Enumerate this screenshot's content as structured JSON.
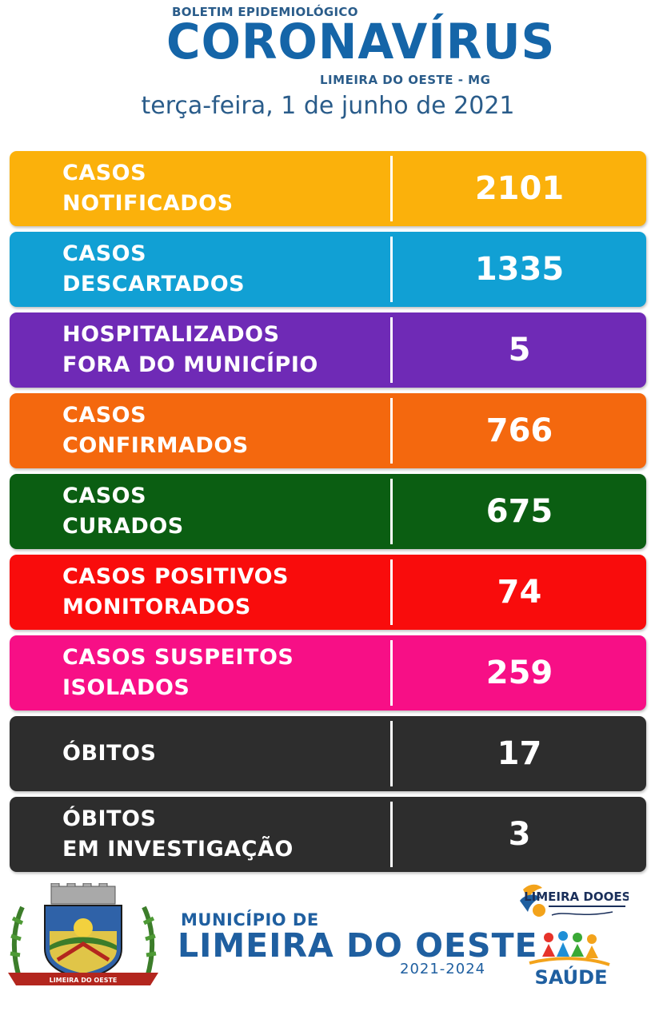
{
  "header": {
    "kicker": "BOLETIM EPIDEMIOLÓGICO",
    "title": "CORONAVÍRUS",
    "location": "LIMEIRA DO OESTE - MG",
    "date": "terça-feira, 1 de junho de 2021"
  },
  "stats": [
    {
      "label": "CASOS\nNOTIFICADOS",
      "value": "2101",
      "color": "#fbb10b"
    },
    {
      "label": "CASOS\nDESCARTADOS",
      "value": "1335",
      "color": "#11a0d4"
    },
    {
      "label": "HOSPITALIZADOS\nFORA DO MUNICÍPIO",
      "value": "5",
      "color": "#6f2ab6"
    },
    {
      "label": "CASOS\nCONFIRMADOS",
      "value": "766",
      "color": "#f4680e"
    },
    {
      "label": "CASOS\nCURADOS",
      "value": "675",
      "color": "#0b5e12"
    },
    {
      "label": "CASOS POSITIVOS\nMONITORADOS",
      "value": "74",
      "color": "#f90c0c"
    },
    {
      "label": "CASOS SUSPEITOS\nISOLADOS",
      "value": "259",
      "color": "#f70f86"
    },
    {
      "label": "ÓBITOS",
      "value": "17",
      "color": "#2d2d2d"
    },
    {
      "label": "ÓBITOS\nEM INVESTIGAÇÃO",
      "value": "3",
      "color": "#2d2d2d"
    }
  ],
  "footer": {
    "municipality_label": "MUNICÍPIO DE",
    "municipality_name": "LIMEIRA DO OESTE",
    "term": "2021-2024",
    "crest_icon": "municipal-crest-icon",
    "crest_text": "LIMEIRA DO OESTE",
    "gov_logo_icon": "government-logo-icon",
    "gov_logo_text": "LIMEIRA DOOESTE",
    "saude_logo_icon": "health-secretariat-logo-icon",
    "saude_logo_text": "SAÚDE"
  }
}
